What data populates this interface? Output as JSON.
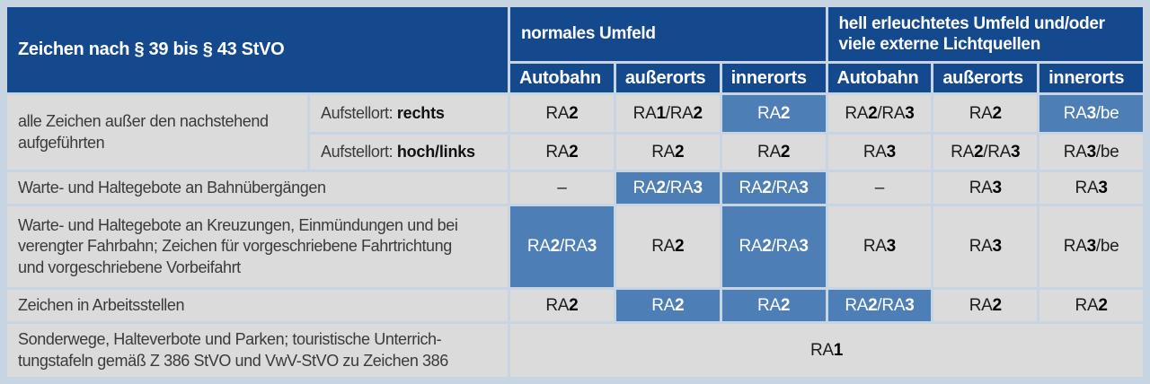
{
  "colors": {
    "header_blue": "#14498e",
    "highlight_blue": "#4d7eb5",
    "cell_gray": "#dbdbdb",
    "background_blue": "#c7d4e2",
    "header_text": "#ffffff",
    "body_text": "#3a3a3a"
  },
  "header": {
    "title": "Zeichen nach § 39 bis § 43 StVO",
    "groups": [
      {
        "label": "normales Umfeld"
      },
      {
        "label": "hell erleuchtetes Umfeld und/oder\nviele externe Lichtquellen"
      }
    ],
    "columns": [
      "Autobahn",
      "außerorts",
      "innerorts",
      "Autobahn",
      "außerorts",
      "innerorts"
    ]
  },
  "body": {
    "group_label": "alle Zeichen außer den nachstehend\naufgeführten",
    "sub_rows": [
      {
        "prefix": "Aufstellort:",
        "mode": "rechts",
        "cells": [
          {
            "v": "RA2",
            "h": false
          },
          {
            "v": "RA1/RA2",
            "h": false
          },
          {
            "v": "RA2",
            "h": true
          },
          {
            "v": "RA2/RA3",
            "h": false
          },
          {
            "v": "RA2",
            "h": false
          },
          {
            "v": "RA3/be",
            "h": true
          }
        ]
      },
      {
        "prefix": "Aufstellort:",
        "mode": "hoch/links",
        "cells": [
          {
            "v": "RA2",
            "h": false
          },
          {
            "v": "RA2",
            "h": false
          },
          {
            "v": "RA2",
            "h": false
          },
          {
            "v": "RA3",
            "h": false
          },
          {
            "v": "RA2/RA3",
            "h": false
          },
          {
            "v": "RA3/be",
            "h": false
          }
        ]
      }
    ],
    "rows": [
      {
        "label": "Warte- und Haltegebote an Bahnübergängen",
        "cells": [
          {
            "v": "–",
            "h": false
          },
          {
            "v": "RA2/RA3",
            "h": true
          },
          {
            "v": "RA2/RA3",
            "h": true
          },
          {
            "v": "–",
            "h": false
          },
          {
            "v": "RA3",
            "h": false
          },
          {
            "v": "RA3",
            "h": false
          }
        ]
      },
      {
        "label": "Warte- und Haltegebote an Kreuzungen, Einmündungen und bei\nverengter Fahrbahn; Zeichen für vorgeschriebene Fahrtrichtung\nund vorgeschriebene Vorbeifahrt",
        "cells": [
          {
            "v": "RA2/RA3",
            "h": true
          },
          {
            "v": "RA2",
            "h": false
          },
          {
            "v": "RA2/RA3",
            "h": true
          },
          {
            "v": "RA3",
            "h": false
          },
          {
            "v": "RA3",
            "h": false
          },
          {
            "v": "RA3/be",
            "h": false
          }
        ]
      },
      {
        "label": "Zeichen in Arbeitsstellen",
        "cells": [
          {
            "v": "RA2",
            "h": false
          },
          {
            "v": "RA2",
            "h": true
          },
          {
            "v": "RA2",
            "h": true
          },
          {
            "v": "RA2/RA3",
            "h": true
          },
          {
            "v": "RA2",
            "h": false
          },
          {
            "v": "RA2",
            "h": false
          }
        ]
      }
    ],
    "footer": {
      "label": "Sonderwege, Halteverbote und Parken; touristische Unterrich-\ntungstafeln gemäß Z 386 StVO und VwV-StVO zu Zeichen 386",
      "value": "RA1"
    }
  }
}
